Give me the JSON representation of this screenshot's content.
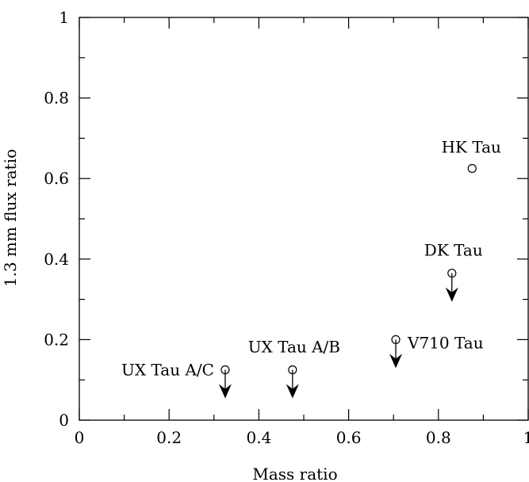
{
  "chart_data": {
    "type": "scatter",
    "title": "",
    "xlabel": "Mass ratio",
    "ylabel": "1.3 mm flux ratio",
    "xlim": [
      0,
      1
    ],
    "ylim": [
      0,
      1
    ],
    "grid": false,
    "x_ticks": [
      {
        "value": 0,
        "label": "0"
      },
      {
        "value": 0.2,
        "label": "0.2"
      },
      {
        "value": 0.4,
        "label": "0.4"
      },
      {
        "value": 0.6,
        "label": "0.6"
      },
      {
        "value": 0.8,
        "label": "0.8"
      },
      {
        "value": 1,
        "label": "1"
      }
    ],
    "y_ticks": [
      {
        "value": 0,
        "label": "0"
      },
      {
        "value": 0.2,
        "label": "0.2"
      },
      {
        "value": 0.4,
        "label": "0.4"
      },
      {
        "value": 0.6,
        "label": "0.6"
      },
      {
        "value": 0.8,
        "label": "0.8"
      },
      {
        "value": 1,
        "label": "1"
      }
    ],
    "points": [
      {
        "label": "UX Tau A/C",
        "x": 0.325,
        "y": 0.125,
        "upper_limit": true,
        "label_side": "left"
      },
      {
        "label": "UX Tau A/B",
        "x": 0.475,
        "y": 0.125,
        "upper_limit": true,
        "label_side": "above"
      },
      {
        "label": "V710 Tau",
        "x": 0.705,
        "y": 0.2,
        "upper_limit": true,
        "label_side": "right"
      },
      {
        "label": "DK Tau",
        "x": 0.83,
        "y": 0.365,
        "upper_limit": true,
        "label_side": "above"
      },
      {
        "label": "HK Tau",
        "x": 0.875,
        "y": 0.625,
        "upper_limit": false,
        "label_side": "above-left"
      }
    ]
  }
}
